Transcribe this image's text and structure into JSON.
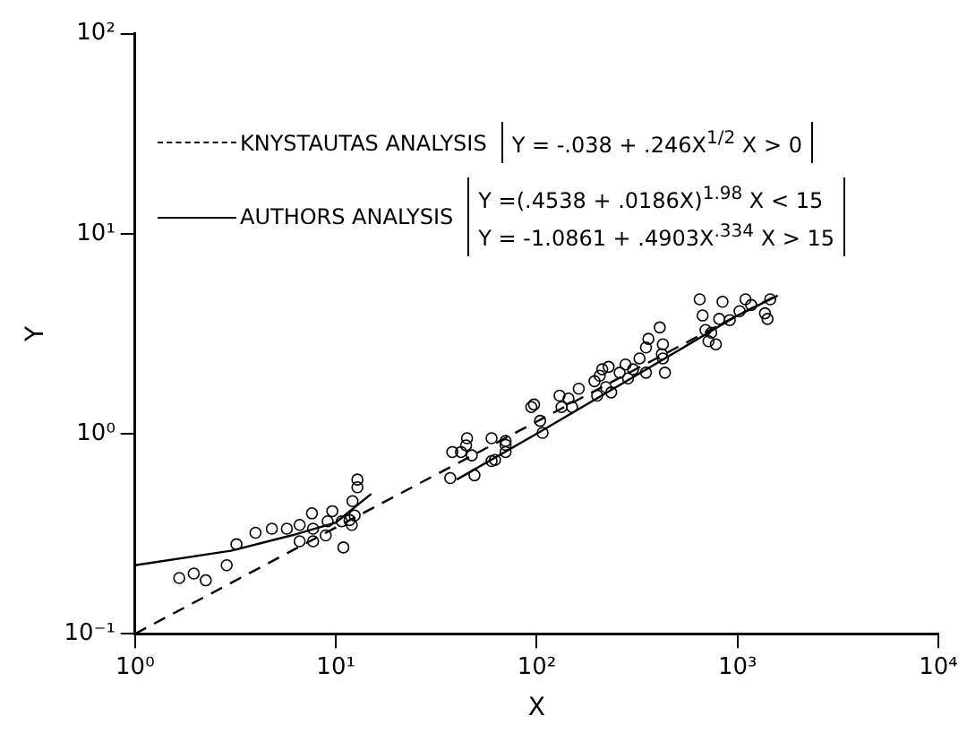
{
  "chart_data": {
    "type": "scatter",
    "xlabel": "X",
    "ylabel": "Y",
    "log": "xy",
    "grid": false,
    "legend": "top left",
    "xlim": [
      1,
      10000
    ],
    "ylim": [
      0.1,
      100
    ],
    "xticks": [
      {
        "value": 1,
        "label": "10⁰"
      },
      {
        "value": 10,
        "label": "10¹"
      },
      {
        "value": 100,
        "label": "10²"
      },
      {
        "value": 1000,
        "label": "10³"
      },
      {
        "value": 10000,
        "label": "10⁴"
      }
    ],
    "yticks": [
      {
        "value": 0.1,
        "label": "10⁻¹"
      },
      {
        "value": 1,
        "label": "10⁰"
      },
      {
        "value": 10,
        "label": "10¹"
      },
      {
        "value": 100,
        "label": "10²"
      }
    ],
    "annotations": [
      "Y = -.038 + .246X$^{1/2}$  X > 0",
      "Y =(.4538 + .0186X)$^{1.98}$  X < 15",
      "Y = -1.0861 + .4903X$^{.334}$ X > 15"
    ],
    "series": [
      {
        "type": "line",
        "name": "KNYSTAUTAS ANALYSIS",
        "color": "#000000",
        "line_style": "dashed",
        "marker": "none",
        "x": [
          1,
          10,
          100,
          1000,
          1500
        ],
        "values": [
          0.1,
          0.34,
          1.15,
          3.9,
          4.8
        ]
      },
      {
        "type": "line",
        "name": "AUTHORS ANALYSIS",
        "color": "#000000",
        "line_style": "solid",
        "marker": "none",
        "x": [
          1,
          3,
          6,
          10,
          15,
          20,
          40,
          100,
          300,
          1000,
          1585
        ],
        "values": [
          0.22,
          0.26,
          0.31,
          0.36,
          0.5,
          null,
          0.59,
          1.0,
          1.91,
          3.9,
          4.9
        ]
      },
      {
        "type": "scatter",
        "color": "#000000",
        "marker": "circle",
        "x": [
          1.66,
          1.96,
          2.25,
          2.86,
          3.2,
          3.98,
          4.8,
          5.7,
          6.6,
          6.6,
          7.6,
          7.7,
          7.7,
          8.9,
          9.1,
          9.6,
          10.7,
          10.9,
          11.7,
          12,
          12.4,
          12.1,
          12.8,
          12.8,
          37.1,
          38,
          42,
          44.5,
          45,
          47.5,
          49,
          59.6,
          59.6,
          62,
          70,
          70,
          70,
          94,
          97,
          104,
          107,
          130,
          133,
          144,
          150,
          162,
          194,
          200,
          206,
          212,
          221,
          228,
          235,
          259,
          277,
          285,
          302,
          325,
          350,
          350,
          360,
          410,
          425,
          425,
          435,
          420,
          648,
          670,
          693,
          717,
          740,
          780,
          811,
          842,
          915,
          1024,
          1096,
          1170,
          1370,
          1410,
          1455
        ],
        "values": [
          0.19,
          0.2,
          0.185,
          0.22,
          0.28,
          0.32,
          0.335,
          0.335,
          0.35,
          0.29,
          0.4,
          0.335,
          0.29,
          0.31,
          0.365,
          0.41,
          0.365,
          0.27,
          0.37,
          0.35,
          0.39,
          0.46,
          0.54,
          0.59,
          0.6,
          0.81,
          0.81,
          0.875,
          0.95,
          0.78,
          0.62,
          0.73,
          0.95,
          0.74,
          0.88,
          0.92,
          0.81,
          1.36,
          1.4,
          1.16,
          1.01,
          1.55,
          1.36,
          1.5,
          1.36,
          1.68,
          1.83,
          1.55,
          1.95,
          2.1,
          1.71,
          2.16,
          1.61,
          2.02,
          2.22,
          1.89,
          2.1,
          2.38,
          2.7,
          2.02,
          2.98,
          3.4,
          2.8,
          2.38,
          2.02,
          2.5,
          4.7,
          3.9,
          3.3,
          2.9,
          3.2,
          2.8,
          3.75,
          4.57,
          3.7,
          4.1,
          4.7,
          4.4,
          4.0,
          3.75,
          4.7
        ]
      }
    ]
  }
}
